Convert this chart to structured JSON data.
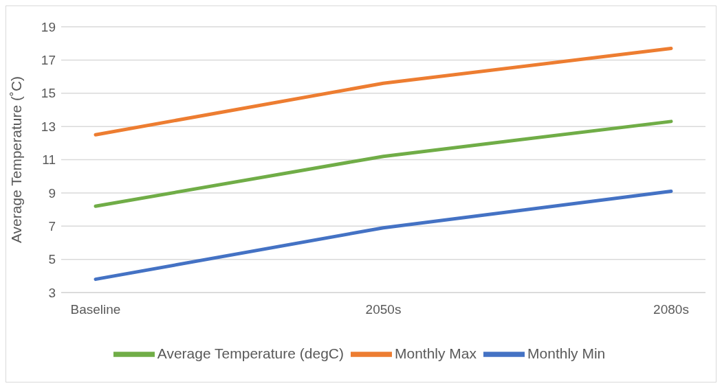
{
  "chart_data": {
    "type": "line",
    "ylabel": "Average Temperature (˚C)",
    "categories": [
      "Baseline",
      "2050s",
      "2080s"
    ],
    "series": [
      {
        "name": "Average Temperature (degC)",
        "color": "#70ad47",
        "values": [
          8.2,
          11.2,
          13.3
        ]
      },
      {
        "name": "Monthly Max",
        "color": "#ed7d31",
        "values": [
          12.5,
          15.6,
          17.7
        ]
      },
      {
        "name": "Monthly Min",
        "color": "#4472c4",
        "values": [
          3.8,
          6.9,
          9.1
        ]
      }
    ],
    "ylim": [
      3,
      19
    ],
    "yticks": [
      3,
      5,
      7,
      9,
      11,
      13,
      15,
      17,
      19
    ],
    "grid": "y",
    "legend": "bottom",
    "marker": "none",
    "line_style": "solid"
  }
}
